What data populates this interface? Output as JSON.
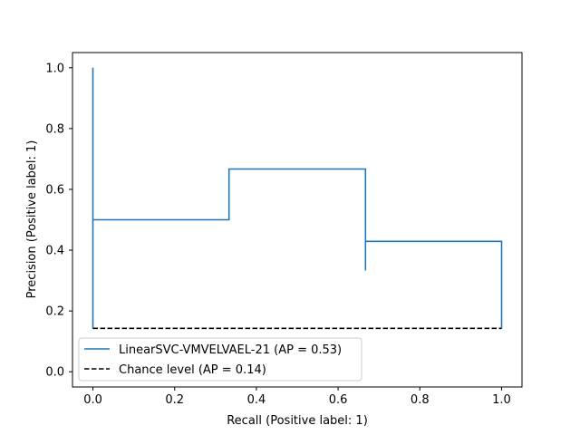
{
  "chart_data": {
    "type": "line",
    "title": "",
    "xlabel": "Recall (Positive label: 1)",
    "ylabel": "Precision (Positive label: 1)",
    "xlim": [
      -0.05,
      1.05
    ],
    "ylim": [
      -0.05,
      1.05
    ],
    "xticks": [
      0.0,
      0.2,
      0.4,
      0.6,
      0.8,
      1.0
    ],
    "xtick_labels": [
      "0.0",
      "0.2",
      "0.4",
      "0.6",
      "0.8",
      "1.0"
    ],
    "yticks": [
      0.0,
      0.2,
      0.4,
      0.6,
      0.8,
      1.0
    ],
    "ytick_labels": [
      "0.0",
      "0.2",
      "0.4",
      "0.6",
      "0.8",
      "1.0"
    ],
    "legend_position": "lower-left",
    "series": [
      {
        "name": "LinearSVC-VMVELVAEL-21 (AP = 0.53)",
        "color": "#1f77b4",
        "style": "solid",
        "x": [
          0.0,
          0.0,
          0.0,
          0.333,
          0.333,
          0.667,
          0.667,
          0.667,
          0.667,
          1.0,
          1.0
        ],
        "y": [
          1.0,
          0.143,
          0.5,
          0.5,
          0.667,
          0.667,
          0.333,
          0.333,
          0.429,
          0.429,
          0.143
        ]
      },
      {
        "name": "Chance level (AP = 0.14)",
        "color": "#000000",
        "style": "dashed",
        "x": [
          0.0,
          1.0
        ],
        "y": [
          0.143,
          0.143
        ]
      }
    ]
  }
}
